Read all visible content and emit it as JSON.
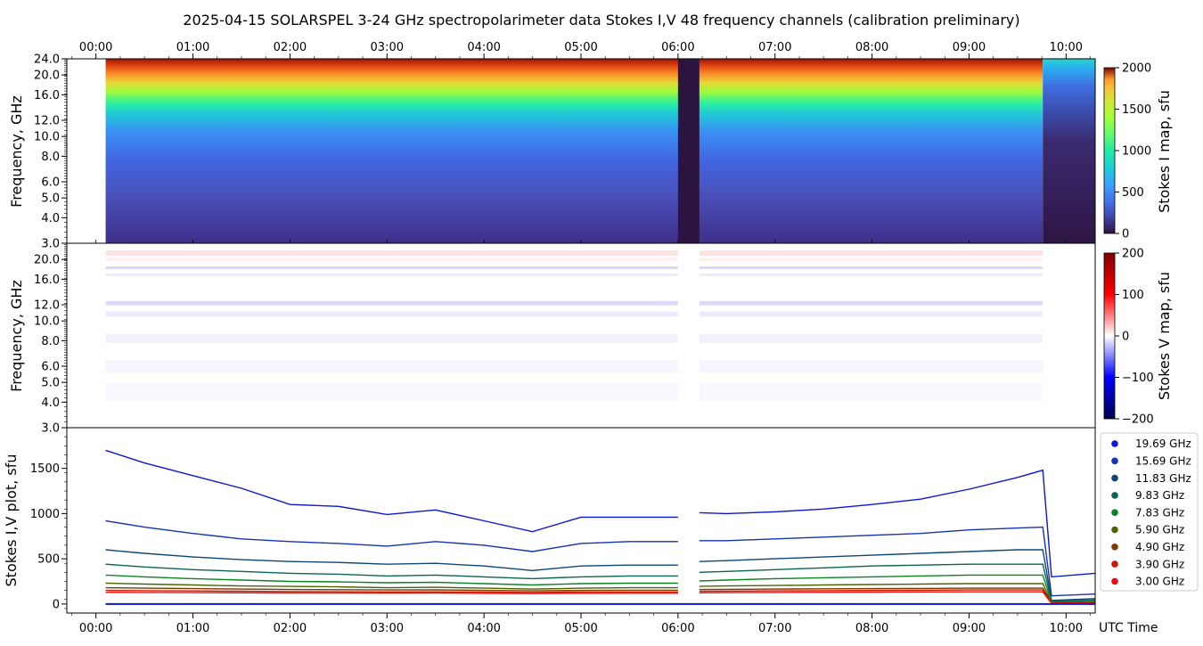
{
  "title": "2025-04-15  SOLARSPEL  3-24 GHz spectropolarimeter data   Stokes I,V   48 frequency channels   (calibration preliminary)",
  "time_ticks": [
    "00:00",
    "01:00",
    "02:00",
    "03:00",
    "04:00",
    "05:00",
    "06:00",
    "07:00",
    "08:00",
    "09:00",
    "10:00"
  ],
  "x_axis_label": "UTC Time",
  "chart_data": [
    {
      "type": "heatmap",
      "name": "stokes-i-map",
      "ylabel": "Frequency, GHz",
      "colorbar_label": "Stokes I map, sfu",
      "colorbar_ticks": [
        0,
        500,
        1000,
        1500,
        2000
      ],
      "zlim": [
        0,
        2000
      ],
      "colormap": "turbo",
      "yticks": [
        "3.0",
        "4.0",
        "5.0",
        "6.0",
        "8.0",
        "10.0",
        "12.0",
        "16.0",
        "20.0",
        "24.0"
      ],
      "ylim": [
        3.0,
        24.0
      ],
      "x_range_hours": [
        -0.3,
        10.3
      ],
      "data_start_hour": 0.1,
      "gap_hours": [
        6.0,
        6.22
      ],
      "sharp_drop_hour": 9.76
    },
    {
      "type": "heatmap",
      "name": "stokes-v-map",
      "ylabel": "Frequency, GHz",
      "colorbar_label": "Stokes V map, sfu",
      "colorbar_ticks": [
        -200,
        -100,
        0,
        100,
        200
      ],
      "zlim": [
        -200,
        200
      ],
      "colormap": "seismic",
      "yticks": [
        "3.0",
        "4.0",
        "5.0",
        "6.0",
        "8.0",
        "10.0",
        "12.0",
        "16.0",
        "20.0"
      ],
      "ylim": [
        3.0,
        24.0
      ],
      "x_range_hours": [
        -0.3,
        10.3
      ],
      "gap_hours": [
        6.0,
        6.22
      ]
    },
    {
      "type": "line",
      "name": "stokes-iv-plot",
      "ylabel": "Stokes I,V plot, sfu",
      "yticks": [
        "0",
        "500",
        "1000",
        "1500"
      ],
      "ylim": [
        -100,
        1950
      ],
      "x_range_hours": [
        -0.3,
        10.3
      ],
      "x": [
        0.1,
        0.5,
        1.0,
        1.5,
        2.0,
        2.5,
        3.0,
        3.5,
        4.0,
        4.5,
        5.0,
        5.5,
        6.0,
        6.22,
        6.5,
        7.0,
        7.5,
        8.0,
        8.5,
        9.0,
        9.5,
        9.76,
        9.85,
        10.3
      ],
      "series": [
        {
          "name": "19.69 GHz",
          "color": "#0a17d8",
          "values": [
            1700,
            1560,
            1420,
            1280,
            1100,
            1080,
            990,
            1040,
            920,
            800,
            960,
            960,
            960,
            1010,
            1000,
            1020,
            1050,
            1100,
            1160,
            1270,
            1400,
            1480,
            300,
            340
          ]
        },
        {
          "name": "15.69 GHz",
          "color": "#1432b4",
          "values": [
            920,
            850,
            780,
            720,
            690,
            670,
            640,
            690,
            650,
            580,
            670,
            690,
            690,
            700,
            700,
            720,
            740,
            760,
            780,
            820,
            840,
            850,
            90,
            110
          ]
        },
        {
          "name": "11.83 GHz",
          "color": "#0d4678",
          "values": [
            600,
            560,
            520,
            490,
            470,
            460,
            440,
            450,
            420,
            370,
            420,
            430,
            430,
            470,
            480,
            500,
            520,
            540,
            560,
            580,
            600,
            600,
            40,
            60
          ]
        },
        {
          "name": "9.83 GHz",
          "color": "#0a6450",
          "values": [
            440,
            410,
            380,
            360,
            340,
            330,
            310,
            320,
            300,
            280,
            300,
            310,
            310,
            350,
            360,
            380,
            400,
            420,
            430,
            440,
            440,
            440,
            30,
            45
          ]
        },
        {
          "name": "7.83 GHz",
          "color": "#0c8224",
          "values": [
            320,
            300,
            280,
            265,
            250,
            245,
            235,
            240,
            225,
            210,
            225,
            230,
            230,
            255,
            265,
            280,
            290,
            300,
            310,
            320,
            320,
            320,
            20,
            30
          ]
        },
        {
          "name": "5.90 GHz",
          "color": "#4a6404",
          "values": [
            230,
            220,
            210,
            200,
            195,
            190,
            180,
            185,
            175,
            165,
            175,
            180,
            180,
            195,
            200,
            205,
            210,
            215,
            220,
            225,
            225,
            225,
            15,
            20
          ]
        },
        {
          "name": "4.90 GHz",
          "color": "#7a3a00",
          "values": [
            180,
            175,
            170,
            165,
            160,
            158,
            155,
            156,
            150,
            145,
            150,
            152,
            152,
            160,
            162,
            165,
            168,
            170,
            172,
            175,
            175,
            175,
            10,
            15
          ]
        },
        {
          "name": "3.90 GHz",
          "color": "#c81800",
          "values": [
            150,
            147,
            144,
            141,
            138,
            136,
            134,
            135,
            132,
            128,
            132,
            133,
            133,
            140,
            142,
            145,
            147,
            150,
            152,
            155,
            155,
            155,
            8,
            12
          ]
        },
        {
          "name": "3.00 GHz",
          "color": "#ee1010",
          "values": [
            130,
            128,
            126,
            124,
            122,
            121,
            120,
            121,
            118,
            116,
            118,
            119,
            119,
            124,
            126,
            128,
            130,
            132,
            134,
            135,
            135,
            135,
            5,
            10
          ]
        }
      ]
    }
  ]
}
